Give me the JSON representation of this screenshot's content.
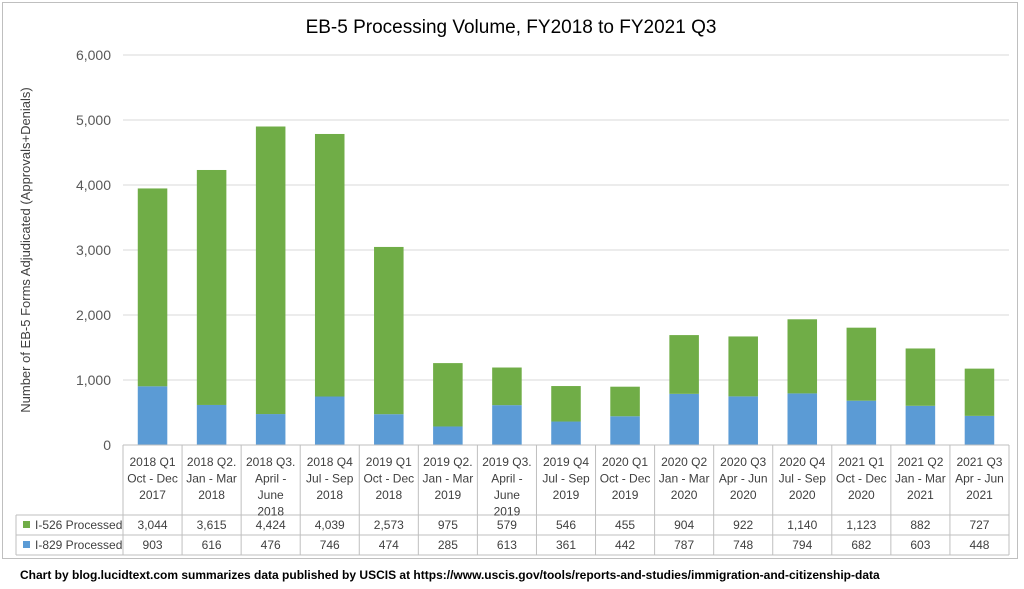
{
  "chart_data": {
    "type": "bar",
    "stacked": true,
    "title": "EB-5 Processing Volume, FY2018 to FY2021 Q3",
    "xlabel": "",
    "ylabel": "Number of EB-5 Forms Adjudicated (Approvals+Denials)",
    "ylim": [
      0,
      6000
    ],
    "yticks": [
      "0",
      "1,000",
      "2,000",
      "3,000",
      "4,000",
      "5,000",
      "6,000"
    ],
    "grid": true,
    "legend": "data-table",
    "categories": [
      [
        "2018 Q1",
        "Oct - Dec",
        "2017"
      ],
      [
        "2018 Q2.",
        "Jan - Mar",
        "2018"
      ],
      [
        "2018 Q3.",
        "April -",
        "June",
        "2018"
      ],
      [
        "2018 Q4",
        "Jul - Sep",
        "2018"
      ],
      [
        "2019  Q1",
        "Oct - Dec",
        "2018"
      ],
      [
        "2019 Q2.",
        "Jan - Mar",
        "2019"
      ],
      [
        "2019 Q3.",
        "April -",
        "June",
        "2019"
      ],
      [
        "2019 Q4",
        "Jul - Sep",
        "2019"
      ],
      [
        "2020  Q1",
        "Oct - Dec",
        "2019"
      ],
      [
        "2020 Q2",
        "Jan - Mar",
        "2020"
      ],
      [
        "2020 Q3",
        "Apr - Jun",
        "2020"
      ],
      [
        "2020 Q4",
        "Jul - Sep",
        "2020"
      ],
      [
        "2021 Q1",
        "Oct - Dec",
        "2020"
      ],
      [
        "2021 Q2",
        "Jan - Mar",
        "2021"
      ],
      [
        "2021 Q3",
        "Apr - Jun",
        "2021"
      ]
    ],
    "series": [
      {
        "name": "I-526 Processed",
        "color": "#70ad47",
        "values": [
          3044,
          3615,
          4424,
          4039,
          2573,
          975,
          579,
          546,
          455,
          904,
          922,
          1140,
          1123,
          882,
          727
        ],
        "labels": [
          "3,044",
          "3,615",
          "4,424",
          "4,039",
          "2,573",
          "975",
          "579",
          "546",
          "455",
          "904",
          "922",
          "1,140",
          "1,123",
          "882",
          "727"
        ]
      },
      {
        "name": "I-829 Processed",
        "color": "#5b9bd5",
        "values": [
          903,
          616,
          476,
          746,
          474,
          285,
          613,
          361,
          442,
          787,
          748,
          794,
          682,
          603,
          448
        ],
        "labels": [
          "903",
          "616",
          "476",
          "746",
          "474",
          "285",
          "613",
          "361",
          "442",
          "787",
          "748",
          "794",
          "682",
          "603",
          "448"
        ]
      }
    ]
  },
  "caption": "Chart by blog.lucidtext.com summarizes data published by USCIS at https://www.uscis.gov/tools/reports-and-studies/immigration-and-citizenship-data"
}
